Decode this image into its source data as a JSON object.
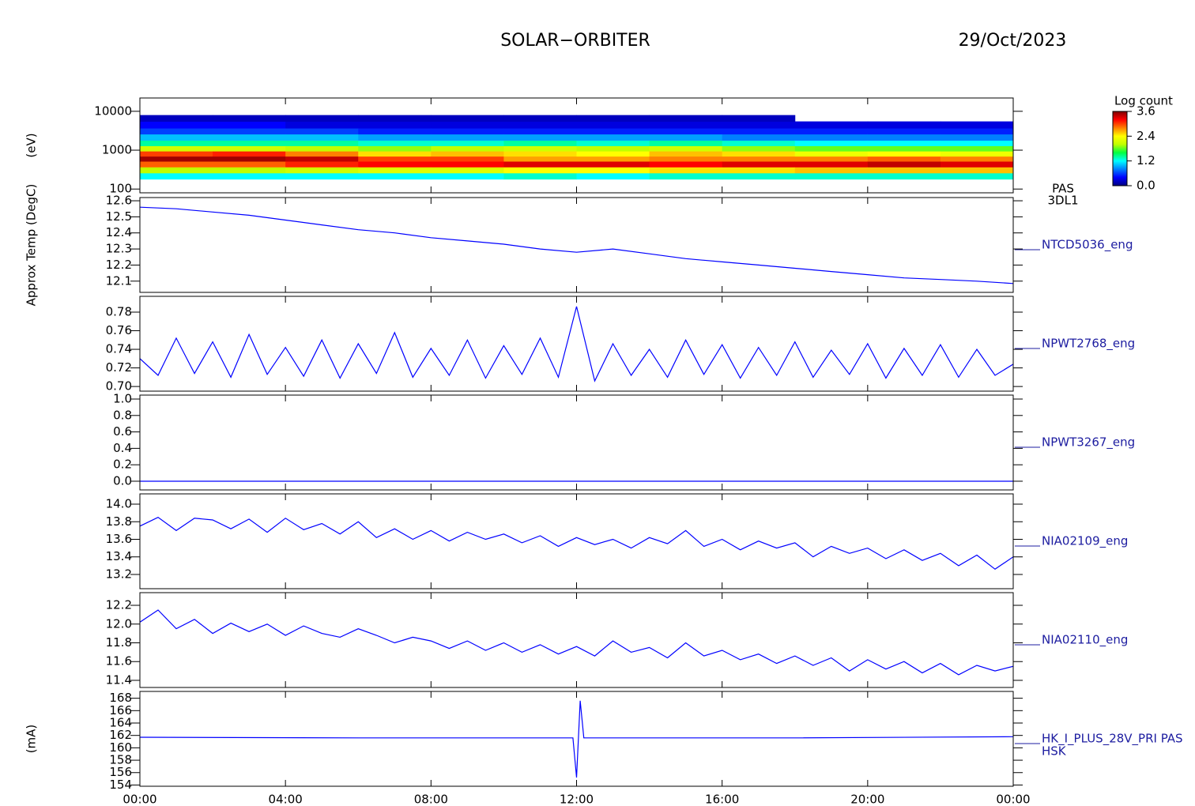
{
  "header": {
    "title": "SOLAR−ORBITER",
    "date": "29/Oct/2023"
  },
  "chart_data": [
    {
      "type": "spectrogram",
      "ylabel": "(eV)",
      "labels": [
        "PAS",
        "3DL1"
      ],
      "yscale": "log",
      "xlim": [
        0,
        24
      ],
      "ylim": [
        80,
        22000
      ],
      "yticks": [
        100,
        1000,
        10000
      ],
      "x": [
        0,
        2,
        4,
        6,
        8,
        10,
        12,
        14,
        16,
        18,
        20,
        22,
        24
      ],
      "energy_bins": [
        180,
        260,
        370,
        520,
        700,
        950,
        1300,
        1800,
        2600,
        3700,
        5500,
        8000
      ],
      "z": [
        [
          1.2,
          2.0,
          2.9,
          3.5,
          3.0,
          2.1,
          1.4,
          1.0,
          0.6,
          0.4,
          0.2
        ],
        [
          1.2,
          2.0,
          2.9,
          3.5,
          3.1,
          2.1,
          1.4,
          1.0,
          0.6,
          0.4,
          0.2
        ],
        [
          1.2,
          2.1,
          3.1,
          3.4,
          2.8,
          2.0,
          1.4,
          1.0,
          0.6,
          0.3,
          0.2
        ],
        [
          1.2,
          2.2,
          3.2,
          3.0,
          2.5,
          1.9,
          1.3,
          0.9,
          0.5,
          0.3,
          0.2
        ],
        [
          1.2,
          2.2,
          3.2,
          3.0,
          2.6,
          2.0,
          1.3,
          0.9,
          0.5,
          0.3,
          0.2
        ],
        [
          1.3,
          2.4,
          3.3,
          2.7,
          2.5,
          2.1,
          1.4,
          0.9,
          0.5,
          0.3,
          0.2
        ],
        [
          1.2,
          2.4,
          3.3,
          2.7,
          2.4,
          2.0,
          1.3,
          0.9,
          0.5,
          0.3,
          0.2
        ],
        [
          1.3,
          2.5,
          3.2,
          2.8,
          2.6,
          2.1,
          1.4,
          0.9,
          0.5,
          0.3,
          0.2
        ],
        [
          1.3,
          2.5,
          3.3,
          2.8,
          2.5,
          1.9,
          1.3,
          0.8,
          0.5,
          0.3,
          0.2
        ],
        [
          1.3,
          2.6,
          3.3,
          2.8,
          2.3,
          1.8,
          1.2,
          0.8,
          0.5,
          0.3,
          null
        ],
        [
          1.3,
          2.6,
          3.4,
          2.9,
          2.4,
          1.8,
          1.2,
          0.8,
          0.5,
          0.3,
          null
        ],
        [
          1.3,
          2.6,
          3.3,
          2.8,
          2.3,
          1.8,
          1.2,
          0.8,
          0.5,
          0.3,
          null
        ]
      ],
      "colormap": [
        "#00007f",
        "#0000ff",
        "#0080ff",
        "#00ffff",
        "#00ff40",
        "#c0ff00",
        "#ffff00",
        "#ff8000",
        "#ff0000",
        "#800000"
      ],
      "colorbar": {
        "label": "Log count",
        "lim": [
          0,
          3.6
        ],
        "ticks": [
          {
            "value": 0,
            "label": "0.0"
          },
          1.2,
          2.4,
          3.6
        ]
      }
    },
    {
      "type": "line",
      "ylabel": "Approx Temp (DegC)",
      "xlim": [
        0,
        24
      ],
      "ylim": [
        12.03,
        12.62
      ],
      "yticks": [
        12.1,
        12.2,
        12.3,
        12.4,
        12.5,
        12.6
      ],
      "x": [
        0,
        1,
        2,
        3,
        4,
        5,
        6,
        7,
        8,
        9,
        10,
        11,
        12,
        13,
        14,
        15,
        16,
        17,
        18,
        19,
        20,
        21,
        22,
        23,
        24
      ],
      "series": [
        {
          "name": "NTCD5036_eng",
          "color": "#0000ff",
          "values": [
            12.56,
            12.55,
            12.53,
            12.51,
            12.48,
            12.45,
            12.42,
            12.4,
            12.37,
            12.35,
            12.33,
            12.3,
            12.28,
            12.3,
            12.27,
            12.24,
            12.22,
            12.2,
            12.18,
            12.16,
            12.14,
            12.12,
            12.11,
            12.1,
            12.085
          ]
        }
      ]
    },
    {
      "type": "line",
      "xlim": [
        0,
        24
      ],
      "ylim": [
        0.695,
        0.797
      ],
      "yticks": [
        {
          "value": 0.7,
          "label": "0.70"
        },
        0.72,
        0.74,
        0.76,
        0.78
      ],
      "x": [
        0,
        0.5,
        1,
        1.5,
        2,
        2.5,
        3,
        3.5,
        4,
        4.5,
        5,
        5.5,
        6,
        6.5,
        7,
        7.5,
        8,
        8.5,
        9,
        9.5,
        10,
        10.5,
        11,
        11.5,
        12,
        12.5,
        13,
        13.5,
        14,
        14.5,
        15,
        15.5,
        16,
        16.5,
        17,
        17.5,
        18,
        18.5,
        19,
        19.5,
        20,
        20.5,
        21,
        21.5,
        22,
        22.5,
        23,
        23.5,
        24
      ],
      "series": [
        {
          "name": "NPWT2768_eng",
          "color": "#0000ff",
          "values": [
            0.73,
            0.712,
            0.752,
            0.714,
            0.748,
            0.71,
            0.756,
            0.713,
            0.742,
            0.711,
            0.75,
            0.709,
            0.746,
            0.714,
            0.758,
            0.71,
            0.741,
            0.712,
            0.75,
            0.709,
            0.744,
            0.713,
            0.752,
            0.71,
            0.786,
            0.706,
            0.746,
            0.712,
            0.74,
            0.71,
            0.75,
            0.713,
            0.745,
            0.709,
            0.742,
            0.712,
            0.748,
            0.71,
            0.739,
            0.713,
            0.746,
            0.709,
            0.741,
            0.712,
            0.745,
            0.71,
            0.74,
            0.712,
            0.724
          ]
        }
      ]
    },
    {
      "type": "line",
      "xlim": [
        0,
        24
      ],
      "ylim": [
        -0.106,
        1.048
      ],
      "yticks": [
        {
          "value": 0,
          "label": "0.0"
        },
        0.2,
        0.4,
        0.6,
        0.8,
        {
          "value": 1,
          "label": "1.0"
        }
      ],
      "x": [
        0,
        24
      ],
      "series": [
        {
          "name": "NPWT3267_eng",
          "color": "#0000ff",
          "values": [
            0,
            0
          ]
        }
      ]
    },
    {
      "type": "line",
      "xlim": [
        0,
        24
      ],
      "ylim": [
        13.038,
        14.117
      ],
      "yticks": [
        13.2,
        13.4,
        13.6,
        13.8,
        {
          "value": 14,
          "label": "14.0"
        }
      ],
      "x": [
        0,
        0.5,
        1,
        1.5,
        2,
        2.5,
        3,
        3.5,
        4,
        4.5,
        5,
        5.5,
        6,
        6.5,
        7,
        7.5,
        8,
        8.5,
        9,
        9.5,
        10,
        10.5,
        11,
        11.5,
        12,
        12.5,
        13,
        13.5,
        14,
        14.5,
        15,
        15.5,
        16,
        16.5,
        17,
        17.5,
        18,
        18.5,
        19,
        19.5,
        20,
        20.5,
        21,
        21.5,
        22,
        22.5,
        23,
        23.5,
        24
      ],
      "series": [
        {
          "name": "NIA02109_eng",
          "color": "#0000ff",
          "values": [
            13.75,
            13.85,
            13.7,
            13.84,
            13.82,
            13.72,
            13.83,
            13.68,
            13.84,
            13.71,
            13.78,
            13.66,
            13.8,
            13.62,
            13.72,
            13.6,
            13.7,
            13.58,
            13.68,
            13.6,
            13.66,
            13.56,
            13.64,
            13.52,
            13.62,
            13.54,
            13.6,
            13.5,
            13.62,
            13.55,
            13.7,
            13.52,
            13.6,
            13.48,
            13.58,
            13.5,
            13.56,
            13.4,
            13.52,
            13.44,
            13.5,
            13.38,
            13.48,
            13.36,
            13.44,
            13.3,
            13.42,
            13.26,
            13.4
          ]
        }
      ]
    },
    {
      "type": "line",
      "xlim": [
        0,
        24
      ],
      "ylim": [
        11.324,
        12.335
      ],
      "yticks": [
        11.4,
        11.6,
        11.8,
        {
          "value": 12,
          "label": "12.0"
        },
        12.2
      ],
      "x": [
        0,
        0.5,
        1,
        1.5,
        2,
        2.5,
        3,
        3.5,
        4,
        4.5,
        5,
        5.5,
        6,
        6.5,
        7,
        7.5,
        8,
        8.5,
        9,
        9.5,
        10,
        10.5,
        11,
        11.5,
        12,
        12.5,
        13,
        13.5,
        14,
        14.5,
        15,
        15.5,
        16,
        16.5,
        17,
        17.5,
        18,
        18.5,
        19,
        19.5,
        20,
        20.5,
        21,
        21.5,
        22,
        22.5,
        23,
        23.5,
        24
      ],
      "series": [
        {
          "name": "NIA02110_eng",
          "color": "#0000ff",
          "values": [
            12.02,
            12.15,
            11.95,
            12.05,
            11.9,
            12.01,
            11.92,
            12.0,
            11.88,
            11.98,
            11.9,
            11.86,
            11.95,
            11.88,
            11.8,
            11.86,
            11.82,
            11.74,
            11.82,
            11.72,
            11.8,
            11.7,
            11.78,
            11.68,
            11.76,
            11.66,
            11.82,
            11.7,
            11.75,
            11.64,
            11.8,
            11.66,
            11.72,
            11.62,
            11.68,
            11.58,
            11.66,
            11.56,
            11.64,
            11.5,
            11.62,
            11.52,
            11.6,
            11.48,
            11.58,
            11.46,
            11.56,
            11.5,
            11.55
          ]
        }
      ]
    },
    {
      "type": "line",
      "ylabel": "(mA)",
      "sublabel": "HSK",
      "xlim": [
        0,
        24
      ],
      "ylim": [
        153.8,
        169.1
      ],
      "yticks": [
        154,
        156,
        158,
        160,
        162,
        164,
        166,
        168
      ],
      "xticks": [
        {
          "value": 0,
          "label": "00:00"
        },
        {
          "value": 4,
          "label": "04:00"
        },
        {
          "value": 8,
          "label": "08:00"
        },
        {
          "value": 12,
          "label": "12:00"
        },
        {
          "value": 16,
          "label": "16:00"
        },
        {
          "value": 20,
          "label": "20:00"
        },
        {
          "value": 24,
          "label": "00:00"
        }
      ],
      "x": [
        0,
        6,
        11.9,
        12,
        12.1,
        12.2,
        18,
        24
      ],
      "series": [
        {
          "name": "HK_I_PLUS_28V_PRI PAS",
          "color": "#0000ff",
          "values": [
            161.7,
            161.6,
            161.6,
            155.2,
            167.6,
            161.6,
            161.6,
            161.8
          ]
        }
      ]
    }
  ]
}
